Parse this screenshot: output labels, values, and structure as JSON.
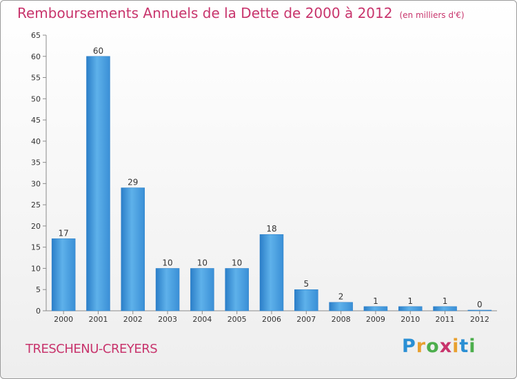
{
  "title": "Remboursements Annuels de la Dette de 2000 à 2012",
  "subtitle": "(en milliers d'€)",
  "commune": "TRESCHENU-CREYERS",
  "logo": {
    "letters": [
      "P",
      "r",
      "o",
      "x",
      "i",
      "t",
      "i"
    ],
    "colors": [
      "#2a8fd4",
      "#e8a030",
      "#4cae4c",
      "#c8346c",
      "#e8a030",
      "#2a8fd4",
      "#4cae4c"
    ]
  },
  "colors": {
    "bar": "#3a8fd6",
    "bar_light": "#5eb1ea",
    "title": "#c8346c"
  },
  "chart_data": {
    "type": "bar",
    "categories": [
      "2000",
      "2001",
      "2002",
      "2003",
      "2004",
      "2005",
      "2006",
      "2007",
      "2008",
      "2009",
      "2010",
      "2011",
      "2012"
    ],
    "values": [
      17,
      60,
      29,
      10,
      10,
      10,
      18,
      5,
      2,
      1,
      1,
      1,
      0
    ],
    "ylim": [
      0,
      65
    ],
    "yticks": [
      0,
      5,
      10,
      15,
      20,
      25,
      30,
      35,
      40,
      45,
      50,
      55,
      60,
      65
    ],
    "grid": false,
    "legend": "none"
  }
}
